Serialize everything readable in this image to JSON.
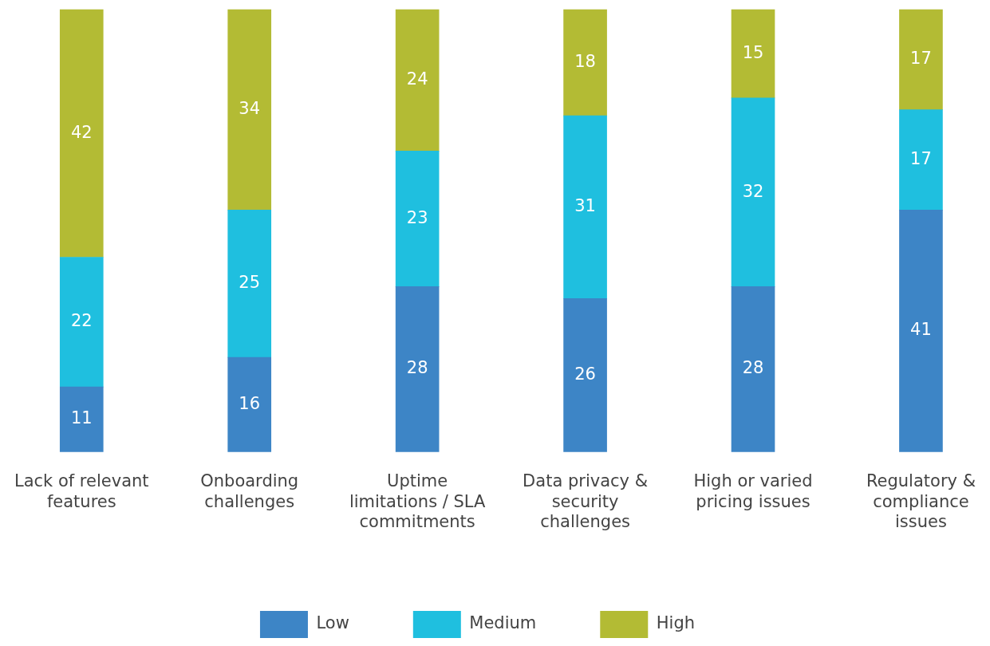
{
  "chart_data": {
    "type": "bar",
    "stacked": true,
    "data_labels": true,
    "legend": "bottom",
    "categories": [
      "Lack of relevant features",
      "Onboarding challenges",
      "Uptime limitations / SLA commitments",
      "Data privacy & security challenges",
      "High or varied pricing issues",
      "Regulatory & compliance issues"
    ],
    "ylim": [
      0,
      75
    ],
    "series": [
      {
        "name": "Low",
        "color": "#3d85c6",
        "values": [
          11,
          16,
          28,
          26,
          28,
          41
        ]
      },
      {
        "name": "Medium",
        "color": "#1fbfdf",
        "values": [
          22,
          25,
          23,
          31,
          32,
          17
        ]
      },
      {
        "name": "High",
        "color": "#b3bb34",
        "values": [
          42,
          34,
          24,
          18,
          15,
          17
        ]
      }
    ]
  }
}
